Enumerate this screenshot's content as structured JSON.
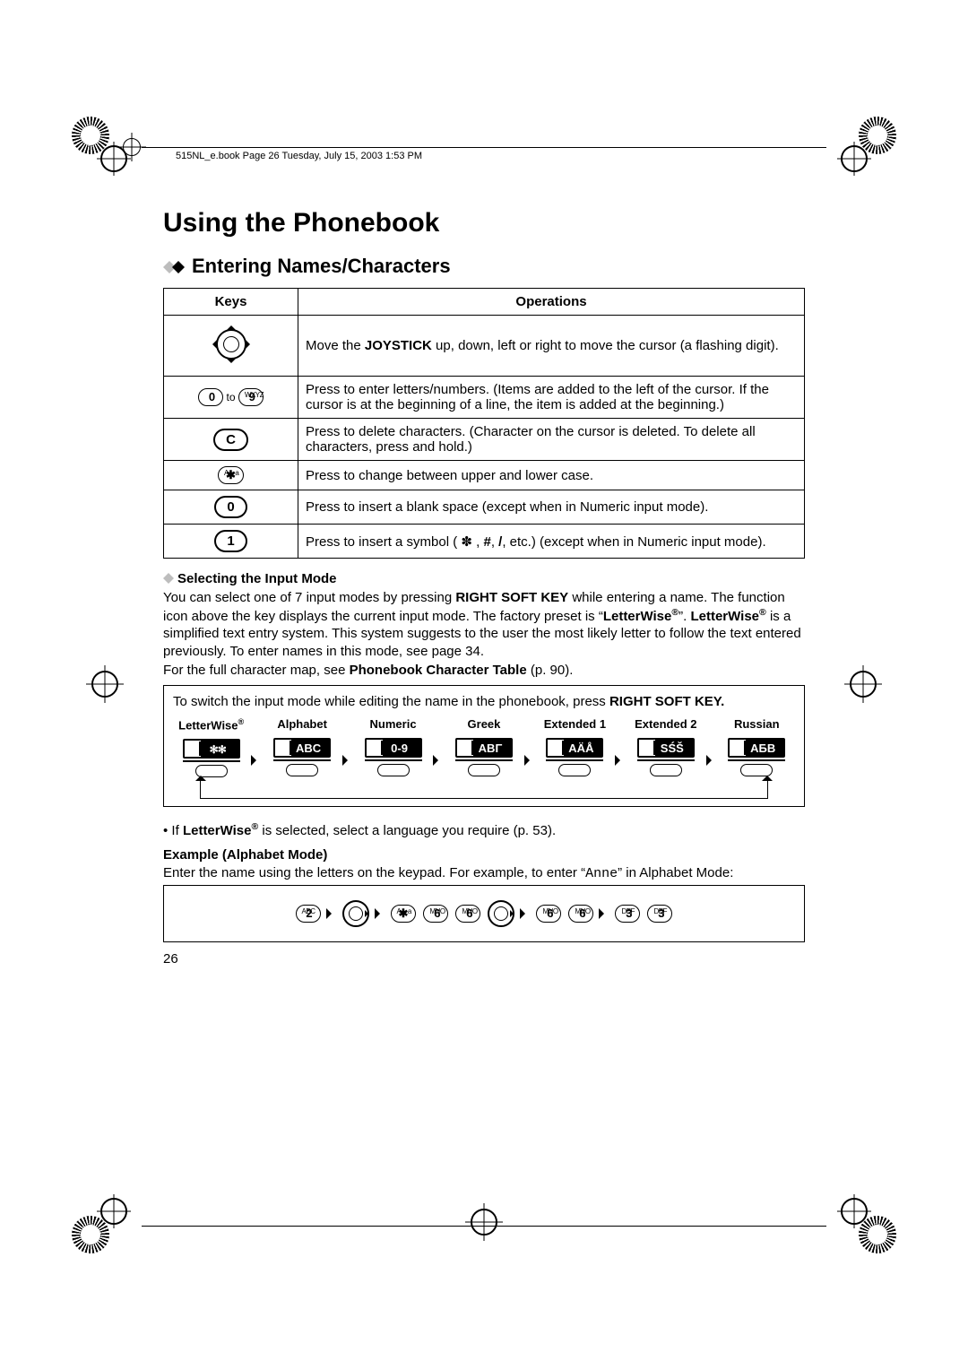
{
  "runhead": "515NL_e.book  Page 26  Tuesday, July 15, 2003  1:53 PM",
  "h1": "Using the Phonebook",
  "h2": "Entering Names/Characters",
  "table": {
    "head_keys": "Keys",
    "head_ops": "Operations",
    "rows": [
      {
        "keytype": "joystick",
        "op_parts": [
          "Move the ",
          "JOYSTICK",
          " up, down, left or right to move the cursor (a flashing digit)."
        ]
      },
      {
        "keytype": "range09",
        "to": " to ",
        "op": "Press to enter letters/numbers. (Items are added to the left of the cursor. If the cursor is at the beginning of a line, the item is added at the beginning.)"
      },
      {
        "keytype": "c",
        "op": "Press to delete characters. (Character on the cursor is deleted. To delete all characters, press and hold.)"
      },
      {
        "keytype": "star",
        "op": "Press to change between upper and lower case."
      },
      {
        "keytype": "zero",
        "op": "Press to insert a blank space (except when in Numeric input mode)."
      },
      {
        "keytype": "one",
        "op_parts": [
          "Press to insert a symbol ( ✽ , ",
          "#",
          ", ",
          "/",
          ", etc.) (except when in Numeric input mode)."
        ]
      }
    ]
  },
  "sub1_title": "Selecting the Input Mode",
  "sub1_p1a": "You can select one of 7 input modes by pressing ",
  "sub1_p1b": "RIGHT SOFT KEY",
  "sub1_p1c": " while entering a name. The function icon above the key displays the current input mode. The factory preset is “",
  "sub1_p1d": "LetterWise",
  "sub1_p1e": "”. ",
  "sub1_p1f": "LetterWise",
  "sub1_p1g": " is a simplified text entry system. This system suggests to the user the most likely letter to follow the text entered previously. To enter names in this mode, see page 34.",
  "sub1_p2a": "For the full character map, see ",
  "sub1_p2b": "Phonebook Character Table",
  "sub1_p2c": " (p. 90).",
  "boxnote_a": "To switch the input mode while editing the name in the phonebook, press ",
  "boxnote_b": "RIGHT SOFT KEY.",
  "modes": [
    {
      "label": "LetterWise®",
      "screen": "✻✻",
      "lw": true
    },
    {
      "label": "Alphabet",
      "screen": "ABC"
    },
    {
      "label": "Numeric",
      "screen": "0-9"
    },
    {
      "label": "Greek",
      "screen": "ΑΒΓ"
    },
    {
      "label": "Extended 1",
      "screen": "AÄÅ"
    },
    {
      "label": "Extended 2",
      "screen": "SŚŠ"
    },
    {
      "label": "Russian",
      "screen": "АБВ"
    }
  ],
  "bullet_a": "If ",
  "bullet_b": "LetterWise",
  "bullet_c": " is selected, select a language you require (p. 53).",
  "example_title": "Example (Alphabet Mode)",
  "example_p_a": "Enter the name using the letters on the keypad. For example, to enter “",
  "example_name": "Anne",
  "example_p_b": "” in Alphabet Mode:",
  "seq_keys": {
    "abc2": {
      "pre": "ABC",
      "big": "2"
    },
    "aa": {
      "pre": "A→a",
      "big": "✱"
    },
    "mno6": {
      "pre": "MNO",
      "big": "6"
    },
    "def3": {
      "pre": "DEF",
      "big": "3"
    },
    "wxyz9": {
      "pre": "WXYZ",
      "big": "9"
    },
    "zero": {
      "pre": "",
      "big": "0"
    },
    "one": {
      "pre": "",
      "big": "1"
    },
    "c": {
      "pre": "",
      "big": "C"
    }
  },
  "pagenum": "26"
}
